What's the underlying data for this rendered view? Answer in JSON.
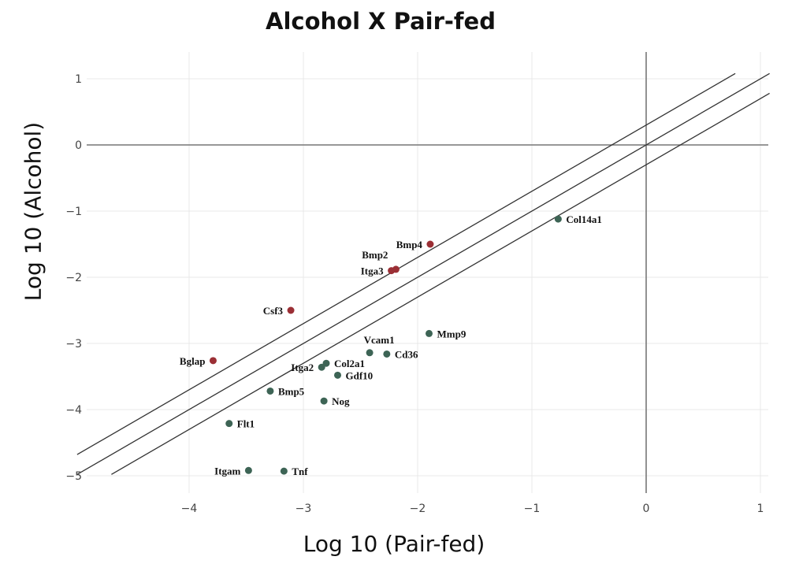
{
  "chart_data": {
    "type": "scatter",
    "title": "Alcohol X Pair-fed",
    "xlabel": "Log 10 (Pair-fed)",
    "ylabel": "Log 10 (Alcohol)",
    "xlim": [
      -5.0,
      1.1
    ],
    "ylim": [
      -5.3,
      1.4
    ],
    "x_ticks": [
      -4,
      -3,
      -2,
      -1,
      0,
      1
    ],
    "x_tick_labels": [
      "−4",
      "−3",
      "−2",
      "−1",
      "0",
      "1"
    ],
    "y_ticks": [
      1,
      0,
      -1,
      -2,
      -3,
      -4,
      -5
    ],
    "y_tick_labels": [
      "1",
      "0",
      "−1",
      "−2",
      "−3",
      "−4",
      "−5"
    ],
    "grid": true,
    "reference_lines": [
      {
        "x": [
          -4.98,
          0.78
        ],
        "intercept": 0.3,
        "slope": 1
      },
      {
        "x": [
          -4.98,
          1.08
        ],
        "intercept": 0.0,
        "slope": 1
      },
      {
        "x": [
          -4.68,
          1.08
        ],
        "intercept": -0.3,
        "slope": 1
      }
    ],
    "colors": {
      "up": "#9b2f35",
      "down": "#3d6455",
      "line": "#333333",
      "axis": "#777777",
      "grid": "#e8e8e8"
    },
    "points": [
      {
        "label": "Col14a1",
        "x": -0.77,
        "y": -1.12,
        "group": "down",
        "label_side": "right"
      },
      {
        "label": "Bmp4",
        "x": -1.89,
        "y": -1.5,
        "group": "up",
        "label_side": "left"
      },
      {
        "label": "Bmp2",
        "x": -2.19,
        "y": -1.88,
        "group": "up",
        "label_side": "left-up"
      },
      {
        "label": "Itga3",
        "x": -2.23,
        "y": -1.9,
        "group": "up",
        "label_side": "left"
      },
      {
        "label": "Csf3",
        "x": -3.11,
        "y": -2.5,
        "group": "up",
        "label_side": "left"
      },
      {
        "label": "Mmp9",
        "x": -1.9,
        "y": -2.85,
        "group": "down",
        "label_side": "right"
      },
      {
        "label": "Vcam1",
        "x": -2.42,
        "y": -3.14,
        "group": "down",
        "label_side": "above"
      },
      {
        "label": "Cd36",
        "x": -2.27,
        "y": -3.16,
        "group": "down",
        "label_side": "right"
      },
      {
        "label": "Bglap",
        "x": -3.79,
        "y": -3.26,
        "group": "up",
        "label_side": "left"
      },
      {
        "label": "Col2a1",
        "x": -2.8,
        "y": -3.3,
        "group": "down",
        "label_side": "right"
      },
      {
        "label": "Itga2",
        "x": -2.84,
        "y": -3.36,
        "group": "down",
        "label_side": "left"
      },
      {
        "label": "Gdf10",
        "x": -2.7,
        "y": -3.48,
        "group": "down",
        "label_side": "right"
      },
      {
        "label": "Bmp5",
        "x": -3.29,
        "y": -3.72,
        "group": "down",
        "label_side": "right"
      },
      {
        "label": "Nog",
        "x": -2.82,
        "y": -3.87,
        "group": "down",
        "label_side": "right"
      },
      {
        "label": "Flt1",
        "x": -3.65,
        "y": -4.21,
        "group": "down",
        "label_side": "right"
      },
      {
        "label": "Itgam",
        "x": -3.48,
        "y": -4.92,
        "group": "down",
        "label_side": "left"
      },
      {
        "label": "Tnf",
        "x": -3.17,
        "y": -4.93,
        "group": "down",
        "label_side": "right"
      }
    ]
  }
}
